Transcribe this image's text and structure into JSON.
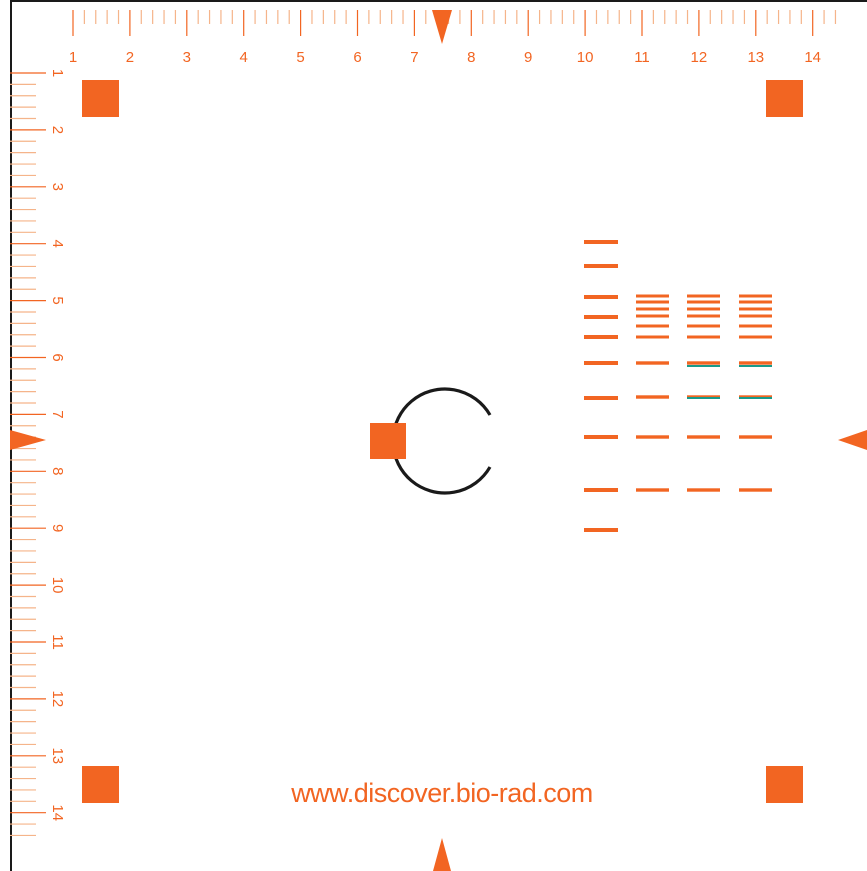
{
  "colors": {
    "accent": "#f26522",
    "tick_minor": "#f5b48a",
    "teal": "#1a9a8a",
    "circle": "#1a1a1a"
  },
  "top_ruler": {
    "labels": [
      "1",
      "2",
      "3",
      "4",
      "5",
      "6",
      "7",
      "8",
      "9",
      "10",
      "11",
      "12",
      "13",
      "14"
    ]
  },
  "left_ruler": {
    "labels": [
      "1",
      "2",
      "3",
      "4",
      "5",
      "6",
      "7",
      "8",
      "9",
      "10",
      "11",
      "12",
      "13",
      "14"
    ]
  },
  "url_text": "www.discover.bio-rad.com",
  "gel": {
    "ladder_lane": {
      "bands": 10
    },
    "sample_lanes": [
      {
        "name": "lane-11",
        "teal_bands": 0
      },
      {
        "name": "lane-12",
        "teal_bands": 2
      },
      {
        "name": "lane-13",
        "teal_bands": 2
      }
    ]
  },
  "icons": {
    "corner_marks": "square-marker-icon",
    "arrows": "triangle-pointer-icon",
    "center": "circle-target-icon"
  }
}
